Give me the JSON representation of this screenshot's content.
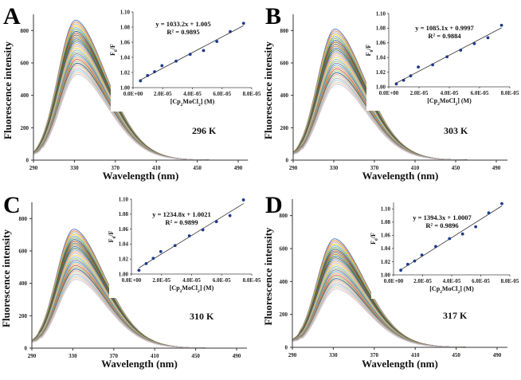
{
  "chart_data": [
    {
      "type": "line",
      "panel": "A",
      "title": "",
      "annotation": "296 K",
      "xlabel": "Wavelength (nm)",
      "ylabel": "Fluorescence intensity",
      "xlim": [
        290,
        500
      ],
      "ylim": [
        0,
        900
      ],
      "xticks": [
        "290",
        "330",
        "370",
        "410",
        "450",
        "490"
      ],
      "yticks": [
        "0",
        "200",
        "400",
        "600",
        "800"
      ],
      "peak_wavelength": 331,
      "series_count": 30,
      "peak_intensity_range": [
        530,
        865
      ],
      "inset": {
        "type": "scatter",
        "xlabel": "[Cp2MoCl2] (M)",
        "ylabel": "F0/F",
        "xlim": [
          0,
          8e-05
        ],
        "ylim": [
          1.0,
          1.1
        ],
        "xticks": [
          "0.0E+00",
          "2.0E-05",
          "4.0E-05",
          "6.0E-05",
          "8.0E-05"
        ],
        "yticks": [
          "1.00",
          "1.02",
          "1.04",
          "1.06",
          "1.08",
          "1.10"
        ],
        "x": [
          5e-06,
          9.8e-06,
          1.45e-05,
          1.95e-05,
          2.9e-05,
          3.85e-05,
          4.75e-05,
          5.65e-05,
          6.55e-05,
          7.45e-05
        ],
        "y": [
          1.009,
          1.016,
          1.021,
          1.029,
          1.035,
          1.044,
          1.049,
          1.061,
          1.074,
          1.085
        ],
        "fit": {
          "slope": 1033.2,
          "intercept": 1.005
        },
        "equation": "y = 1033.2x + 1.005",
        "r2": "R² = 0.9895"
      }
    },
    {
      "type": "line",
      "panel": "B",
      "title": "",
      "annotation": "303 K",
      "xlabel": "Wavelength (nm)",
      "ylabel": "Fluorescence intensity",
      "xlim": [
        290,
        500
      ],
      "ylim": [
        0,
        900
      ],
      "xticks": [
        "290",
        "330",
        "370",
        "410",
        "450",
        "490"
      ],
      "yticks": [
        "0",
        "200",
        "400",
        "600",
        "800"
      ],
      "peak_wavelength": 331,
      "series_count": 30,
      "peak_intensity_range": [
        470,
        810
      ],
      "inset": {
        "type": "scatter",
        "xlabel": "[Cp2MoCl2] (M)",
        "ylabel": "F0/F",
        "xlim": [
          0,
          8e-05
        ],
        "ylim": [
          1.0,
          1.1
        ],
        "xticks": [
          "0.0E+00",
          "2.0E-05",
          "4.0E-05",
          "6.0E-05",
          "8.0E-05"
        ],
        "yticks": [
          "1.00",
          "1.02",
          "1.04",
          "1.06",
          "1.08",
          "1.10"
        ],
        "x": [
          5e-06,
          9.8e-06,
          1.45e-05,
          1.95e-05,
          2.9e-05,
          3.85e-05,
          4.75e-05,
          5.65e-05,
          6.55e-05,
          7.45e-05
        ],
        "y": [
          1.004,
          1.009,
          1.015,
          1.027,
          1.03,
          1.041,
          1.05,
          1.059,
          1.067,
          1.084
        ],
        "fit": {
          "slope": 1085.1,
          "intercept": 0.9997
        },
        "equation": "y = 1085.1x + 0.9997",
        "r2": "R² = 0.9884"
      }
    },
    {
      "type": "line",
      "panel": "C",
      "title": "",
      "annotation": "310 K",
      "xlabel": "Wavelength (nm)",
      "ylabel": "Fluorescence intensity",
      "xlim": [
        290,
        500
      ],
      "ylim": [
        0,
        900
      ],
      "xticks": [
        "290",
        "330",
        "370",
        "410",
        "450",
        "490"
      ],
      "yticks": [
        "0",
        "200",
        "400",
        "600",
        "800"
      ],
      "peak_wavelength": 331,
      "series_count": 30,
      "peak_intensity_range": [
        425,
        735
      ],
      "inset": {
        "type": "scatter",
        "xlabel": "[Cp2MoCl2] (M)",
        "ylabel": "F0/F",
        "xlim": [
          0,
          8e-05
        ],
        "ylim": [
          1.0,
          1.1
        ],
        "xticks": [
          "0.0E+00",
          "2.0E-05",
          "4.0E-05",
          "6.0E-05",
          "8.0E-05"
        ],
        "yticks": [
          "1.00",
          "1.02",
          "1.04",
          "1.06",
          "1.08",
          "1.10"
        ],
        "x": [
          5e-06,
          9.8e-06,
          1.45e-05,
          1.95e-05,
          2.9e-05,
          3.85e-05,
          4.75e-05,
          5.65e-05,
          6.55e-05,
          7.45e-05
        ],
        "y": [
          1.005,
          1.014,
          1.021,
          1.03,
          1.038,
          1.051,
          1.059,
          1.07,
          1.078,
          1.099
        ],
        "fit": {
          "slope": 1234.8,
          "intercept": 1.0021
        },
        "equation": "y = 1234.8x + 1.0021",
        "r2": "R² = 0.9899"
      }
    },
    {
      "type": "line",
      "panel": "D",
      "title": "",
      "annotation": "317 K",
      "xlabel": "Wavelength (nm)",
      "ylabel": "Fluorescence intensity",
      "xlim": [
        290,
        500
      ],
      "ylim": [
        0,
        900
      ],
      "xticks": [
        "290",
        "330",
        "370",
        "410",
        "450",
        "490"
      ],
      "yticks": [
        "0",
        "200",
        "400",
        "600",
        "800"
      ],
      "peak_wavelength": 331,
      "series_count": 30,
      "peak_intensity_range": [
        355,
        660
      ],
      "inset": {
        "type": "scatter",
        "xlabel": "[Cp2MoCl2] (M)",
        "ylabel": "F0/F",
        "xlim": [
          0,
          8e-05
        ],
        "ylim": [
          1.0,
          1.11
        ],
        "xticks": [
          "0.0E+00",
          "2.0E-05",
          "4.0E-05",
          "6.0E-05",
          "8.0E-05"
        ],
        "yticks": [
          "1.00",
          "1.02",
          "1.04",
          "1.06",
          "1.08",
          "1.10"
        ],
        "x": [
          5e-06,
          9.8e-06,
          1.45e-05,
          1.95e-05,
          2.9e-05,
          3.85e-05,
          4.75e-05,
          5.65e-05,
          6.55e-05,
          7.45e-05
        ],
        "y": [
          1.007,
          1.016,
          1.021,
          1.03,
          1.043,
          1.055,
          1.062,
          1.073,
          1.094,
          1.108
        ],
        "fit": {
          "slope": 1394.3,
          "intercept": 1.0007
        },
        "equation": "y = 1394.3x + 1.0007",
        "r2": "R² = 0.9896"
      }
    }
  ],
  "palette": [
    "#4472c4",
    "#ed7d31",
    "#a5a5a5",
    "#ffc000",
    "#5b9bd5",
    "#70ad47",
    "#264478",
    "#9e480e",
    "#636363",
    "#997300",
    "#255e91",
    "#43682b",
    "#698ed0",
    "#f1975a",
    "#b7b7b7",
    "#ffcd33",
    "#7cafdd",
    "#8cc168",
    "#8064a2",
    "#4bacc6",
    "#f79646",
    "#c0504d",
    "#9bbb59",
    "#1f497d",
    "#d99694",
    "#c3d69b",
    "#b3a2c7",
    "#93cddd",
    "#fac090",
    "#ccc1da"
  ],
  "marker_color": "#1f3a8a"
}
